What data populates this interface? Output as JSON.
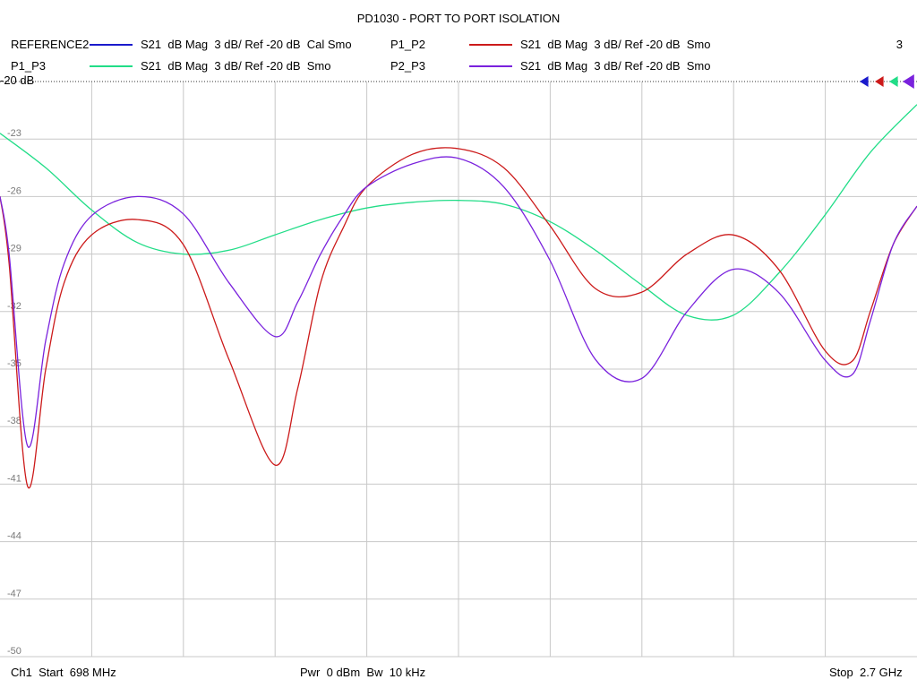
{
  "header": {
    "title": "PD1030 - PORT TO PORT ISOLATION",
    "count": "3"
  },
  "legend": [
    {
      "name": "REFERENCE2",
      "desc": "S21  dB Mag  3 dB/ Ref -20 dB  Cal Smo",
      "color": "#1a1acc"
    },
    {
      "name": "P1_P2",
      "desc": "S21  dB Mag  3 dB/ Ref -20 dB  Smo",
      "color": "#cc1a1a"
    },
    {
      "name": "P1_P3",
      "desc": "S21  dB Mag  3 dB/ Ref -20 dB  Smo",
      "color": "#22dd88"
    },
    {
      "name": "P2_P3",
      "desc": "S21  dB Mag  3 dB/ Ref -20 dB  Smo",
      "color": "#7a22dd"
    }
  ],
  "ref_label": "-20 dB",
  "footer": {
    "start": "Ch1  Start  698 MHz",
    "mid": "Pwr  0 dBm  Bw  10 kHz",
    "stop": "Stop  2.7 GHz"
  },
  "chart_data": {
    "type": "line",
    "title": "PD1030 - PORT TO PORT ISOLATION",
    "x_unit": "GHz",
    "xlim": [
      0.698,
      2.7
    ],
    "ylim": [
      -50,
      -20
    ],
    "y_ticks": [
      "-23",
      "-26",
      "-29",
      "-32",
      "-35",
      "-38",
      "-41",
      "-44",
      "-47",
      "-50"
    ],
    "grid": true,
    "series": [
      {
        "name": "P1_P3",
        "color": "#22dd88",
        "x": [
          0.698,
          0.798,
          0.898,
          0.998,
          1.098,
          1.198,
          1.298,
          1.398,
          1.498,
          1.598,
          1.698,
          1.798,
          1.898,
          1.998,
          2.098,
          2.198,
          2.298,
          2.398,
          2.498,
          2.598,
          2.7
        ],
        "y": [
          -22.7,
          -24.5,
          -26.7,
          -28.4,
          -29.0,
          -28.8,
          -28.0,
          -27.2,
          -26.6,
          -26.3,
          -26.2,
          -26.4,
          -27.3,
          -28.8,
          -30.6,
          -32.2,
          -32.2,
          -30.0,
          -27.0,
          -23.7,
          -21.2
        ]
      },
      {
        "name": "P1_P2",
        "color": "#cc1a1a",
        "x": [
          0.698,
          0.718,
          0.758,
          0.798,
          0.838,
          0.898,
          0.998,
          1.098,
          1.198,
          1.298,
          1.348,
          1.398,
          1.448,
          1.498,
          1.598,
          1.698,
          1.798,
          1.898,
          1.998,
          2.098,
          2.198,
          2.298,
          2.398,
          2.498,
          2.558,
          2.598,
          2.648,
          2.7
        ],
        "y": [
          -26.0,
          -29.5,
          -41.1,
          -35.0,
          -30.5,
          -28.0,
          -27.2,
          -28.5,
          -34.5,
          -40.0,
          -36.0,
          -30.5,
          -27.6,
          -25.5,
          -23.8,
          -23.5,
          -24.5,
          -27.5,
          -30.8,
          -31.0,
          -29.0,
          -28.0,
          -29.8,
          -34.0,
          -34.6,
          -32.0,
          -28.5,
          -26.5
        ]
      },
      {
        "name": "P2_P3",
        "color": "#7a22dd",
        "x": [
          0.698,
          0.718,
          0.758,
          0.798,
          0.838,
          0.898,
          0.998,
          1.098,
          1.198,
          1.298,
          1.348,
          1.398,
          1.448,
          1.498,
          1.598,
          1.698,
          1.798,
          1.898,
          1.998,
          2.098,
          2.198,
          2.298,
          2.398,
          2.498,
          2.558,
          2.598,
          2.648,
          2.7
        ],
        "y": [
          -26.0,
          -29.0,
          -39.0,
          -33.5,
          -29.5,
          -27.0,
          -26.0,
          -26.9,
          -30.5,
          -33.3,
          -31.5,
          -29.0,
          -27.0,
          -25.5,
          -24.3,
          -24.0,
          -25.5,
          -29.3,
          -34.5,
          -35.5,
          -32.0,
          -29.8,
          -31.0,
          -34.5,
          -35.3,
          -32.5,
          -28.5,
          -26.5
        ]
      }
    ]
  }
}
